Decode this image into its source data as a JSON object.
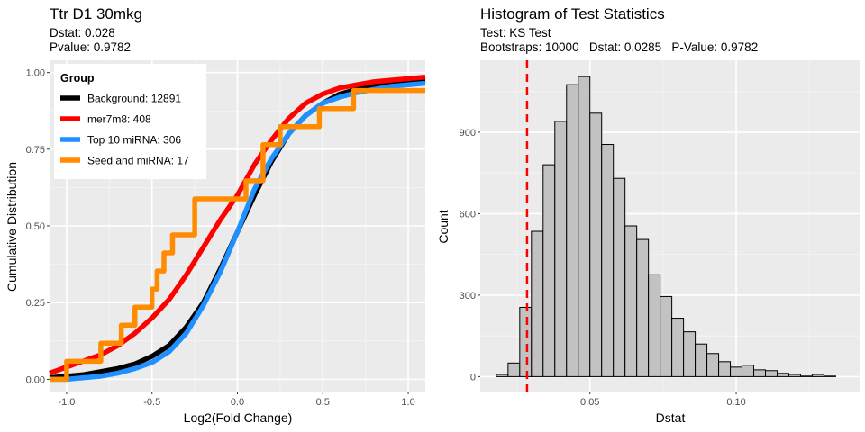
{
  "chart_data": [
    {
      "type": "line",
      "chart_kind": "ecdf-step",
      "title": "Ttr D1 30mkg",
      "subtitle_lines": [
        "Dstat: 0.028",
        "Pvalue: 0.9782"
      ],
      "xlabel": "Log2(Fold Change)",
      "ylabel": "Cumulative Distribution",
      "xlim": [
        -1.1,
        1.1
      ],
      "ylim": [
        -0.04,
        1.04
      ],
      "x_ticks": [
        -1.0,
        -0.5,
        0.0,
        0.5,
        1.0
      ],
      "x_tick_labels": [
        "-1.0",
        "-0.5",
        "0.0",
        "0.5",
        "1.0"
      ],
      "y_ticks": [
        0,
        0.25,
        0.5,
        0.75,
        1.0
      ],
      "y_tick_labels": [
        "0.00",
        "0.25",
        "0.50",
        "0.75",
        "1.00"
      ],
      "grid": true,
      "legend": {
        "title": "Group",
        "position": "top-left"
      },
      "series": [
        {
          "name": "Background: 12891",
          "color": "#000000",
          "x": [
            -1.1,
            -1.0,
            -0.9,
            -0.8,
            -0.7,
            -0.6,
            -0.5,
            -0.4,
            -0.3,
            -0.2,
            -0.1,
            0.0,
            0.1,
            0.2,
            0.3,
            0.4,
            0.5,
            0.6,
            0.7,
            0.8,
            0.9,
            1.0,
            1.1
          ],
          "y": [
            0.005,
            0.01,
            0.015,
            0.025,
            0.035,
            0.05,
            0.075,
            0.11,
            0.17,
            0.25,
            0.36,
            0.48,
            0.6,
            0.71,
            0.8,
            0.86,
            0.9,
            0.93,
            0.945,
            0.955,
            0.965,
            0.97,
            0.975
          ]
        },
        {
          "name": "mer7m8: 408",
          "color": "#ff0000",
          "x": [
            -1.1,
            -1.0,
            -0.9,
            -0.8,
            -0.7,
            -0.6,
            -0.5,
            -0.4,
            -0.3,
            -0.2,
            -0.1,
            0.0,
            0.1,
            0.2,
            0.3,
            0.4,
            0.5,
            0.6,
            0.7,
            0.8,
            0.9,
            1.0,
            1.1
          ],
          "y": [
            0.02,
            0.04,
            0.06,
            0.08,
            0.11,
            0.15,
            0.2,
            0.26,
            0.34,
            0.43,
            0.52,
            0.6,
            0.7,
            0.78,
            0.85,
            0.9,
            0.93,
            0.95,
            0.96,
            0.97,
            0.975,
            0.98,
            0.985
          ]
        },
        {
          "name": "Top 10 miRNA: 306",
          "color": "#1e90ff",
          "x": [
            -1.1,
            -1.0,
            -0.9,
            -0.8,
            -0.7,
            -0.6,
            -0.5,
            -0.4,
            -0.3,
            -0.2,
            -0.1,
            0.0,
            0.1,
            0.2,
            0.3,
            0.4,
            0.5,
            0.6,
            0.7,
            0.8,
            0.9,
            1.0,
            1.1
          ],
          "y": [
            0.0,
            0.0,
            0.005,
            0.01,
            0.02,
            0.035,
            0.055,
            0.09,
            0.15,
            0.24,
            0.35,
            0.48,
            0.62,
            0.72,
            0.8,
            0.86,
            0.9,
            0.92,
            0.935,
            0.945,
            0.955,
            0.96,
            0.965
          ]
        },
        {
          "name": "Seed and miRNA: 17",
          "color": "#ff8c00",
          "x": [
            -1.0,
            -0.8,
            -0.68,
            -0.6,
            -0.5,
            -0.47,
            -0.43,
            -0.38,
            -0.25,
            0.05,
            0.15,
            0.25,
            0.35,
            0.48,
            0.68
          ],
          "y": [
            0.0588,
            0.1176,
            0.1765,
            0.2353,
            0.2941,
            0.3529,
            0.4118,
            0.4706,
            0.5882,
            0.6471,
            0.7647,
            0.8235,
            0.8235,
            0.8824,
            0.9412
          ]
        }
      ]
    },
    {
      "type": "bar",
      "chart_kind": "histogram",
      "title": "Histogram of Test Statistics",
      "subtitle_lines": [
        "Test: KS Test",
        "Bootstraps: 10000   Dstat: 0.0285   P-Value: 0.9782"
      ],
      "xlabel": "Dstat",
      "ylabel": "Count",
      "xlim": [
        0.0125,
        0.1425
      ],
      "ylim": [
        -55,
        1165
      ],
      "x_ticks": [
        0.05,
        0.1
      ],
      "x_tick_labels": [
        "0.05",
        "0.10"
      ],
      "y_ticks": [
        0,
        300,
        600,
        900
      ],
      "y_tick_labels": [
        "0",
        "300",
        "600",
        "900"
      ],
      "grid": true,
      "bin_width": 0.004,
      "bin_start": 0.018,
      "counts": [
        8,
        50,
        255,
        535,
        780,
        940,
        1075,
        1105,
        970,
        855,
        730,
        555,
        505,
        375,
        295,
        215,
        165,
        120,
        85,
        55,
        35,
        42,
        25,
        22,
        12,
        8,
        2,
        8,
        2
      ],
      "fill": "#c2c2c2",
      "stroke": "#000000",
      "reference_line": {
        "x": 0.0285,
        "color": "#ff0000",
        "style": "dashed"
      }
    }
  ]
}
